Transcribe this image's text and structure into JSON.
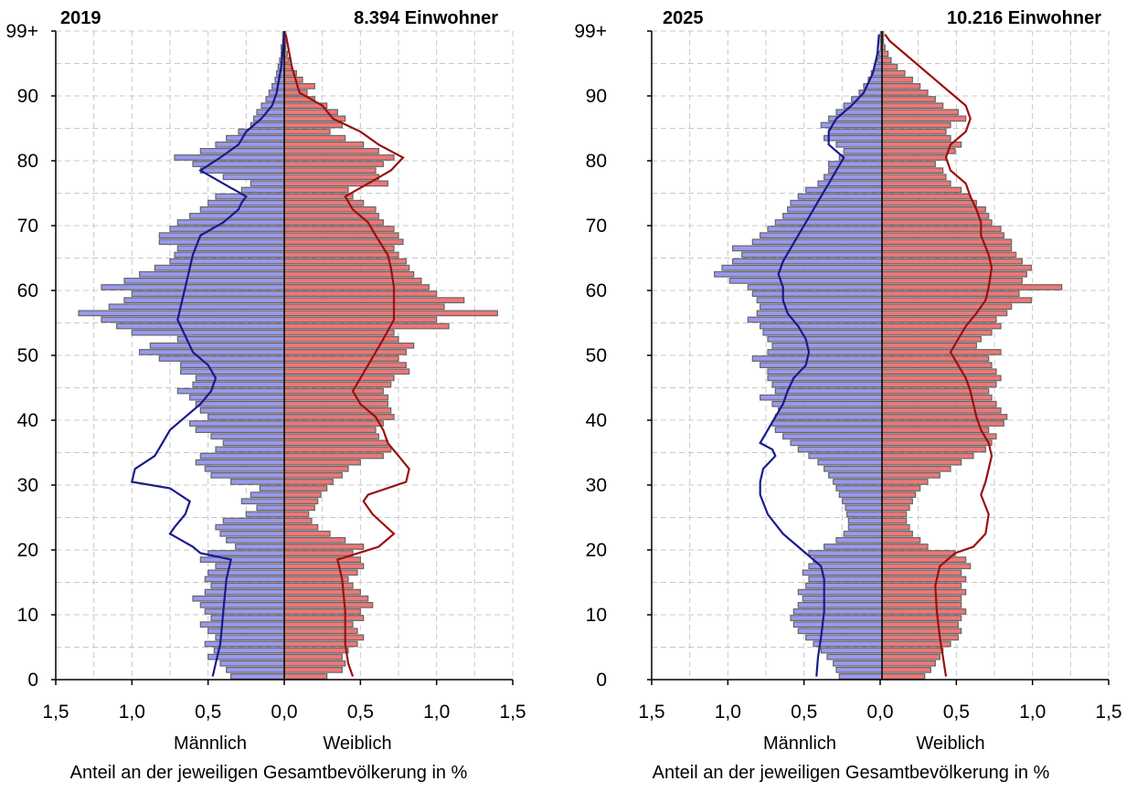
{
  "chart_data": [
    {
      "type": "bar",
      "orientation": "horizontal",
      "chart_subtype": "population-pyramid",
      "year": "2019",
      "population_label": "8.394 Einwohner",
      "xlabel": "Anteil an der jeweiligen Gesamtbevölkerung in %",
      "male_label": "Männlich",
      "female_label": "Weiblich",
      "xlim": [
        -1.5,
        1.5
      ],
      "ylim": [
        0,
        100
      ],
      "x_tick_labels": [
        "1,5",
        "1,0",
        "0,5",
        "0,0",
        "0,5",
        "1,0",
        "1,5"
      ],
      "y_tick_labels": [
        "0",
        "10",
        "20",
        "30",
        "40",
        "50",
        "60",
        "70",
        "80",
        "90",
        "99+"
      ],
      "grid": true,
      "colors": {
        "male_bar": "#9999ee",
        "female_bar": "#ee7777",
        "male_line": "#1a1a8c",
        "female_line": "#991111",
        "bar_edge": "#666666"
      },
      "male_values": [
        0.35,
        0.38,
        0.42,
        0.5,
        0.46,
        0.52,
        0.45,
        0.5,
        0.55,
        0.48,
        0.52,
        0.55,
        0.6,
        0.52,
        0.48,
        0.52,
        0.5,
        0.45,
        0.55,
        0.5,
        0.32,
        0.38,
        0.42,
        0.45,
        0.4,
        0.25,
        0.18,
        0.28,
        0.22,
        0.16,
        0.35,
        0.48,
        0.52,
        0.58,
        0.55,
        0.45,
        0.4,
        0.48,
        0.58,
        0.62,
        0.5,
        0.55,
        0.58,
        0.62,
        0.7,
        0.6,
        0.58,
        0.68,
        0.68,
        0.82,
        0.95,
        0.88,
        0.7,
        1.0,
        1.1,
        1.2,
        1.35,
        1.15,
        1.05,
        1.0,
        1.2,
        1.05,
        0.95,
        0.85,
        0.75,
        0.72,
        0.7,
        0.82,
        0.82,
        0.75,
        0.7,
        0.62,
        0.55,
        0.5,
        0.45,
        0.28,
        0.22,
        0.4,
        0.55,
        0.6,
        0.72,
        0.55,
        0.45,
        0.38,
        0.3,
        0.22,
        0.2,
        0.18,
        0.15,
        0.12,
        0.1,
        0.08,
        0.06,
        0.05,
        0.04,
        0.03,
        0.02,
        0.02,
        0.01,
        0.01
      ],
      "female_values": [
        0.28,
        0.38,
        0.4,
        0.38,
        0.42,
        0.48,
        0.52,
        0.48,
        0.45,
        0.52,
        0.5,
        0.58,
        0.55,
        0.5,
        0.45,
        0.42,
        0.48,
        0.52,
        0.5,
        0.45,
        0.52,
        0.4,
        0.3,
        0.22,
        0.18,
        0.16,
        0.2,
        0.22,
        0.24,
        0.28,
        0.32,
        0.38,
        0.42,
        0.5,
        0.65,
        0.7,
        0.68,
        0.62,
        0.6,
        0.65,
        0.72,
        0.7,
        0.68,
        0.68,
        0.65,
        0.7,
        0.72,
        0.82,
        0.8,
        0.75,
        0.8,
        0.85,
        0.75,
        0.72,
        1.08,
        1.0,
        1.4,
        1.05,
        1.18,
        1.0,
        0.95,
        0.9,
        0.85,
        0.82,
        0.8,
        0.75,
        0.72,
        0.78,
        0.75,
        0.72,
        0.65,
        0.62,
        0.6,
        0.52,
        0.45,
        0.42,
        0.68,
        0.62,
        0.6,
        0.65,
        0.72,
        0.62,
        0.52,
        0.4,
        0.3,
        0.38,
        0.4,
        0.35,
        0.28,
        0.2,
        0.15,
        0.2,
        0.12,
        0.08,
        0.05,
        0.03,
        0.02,
        0.01,
        0.01,
        0.01
      ],
      "male_line": [
        [
          0,
          0.47
        ],
        [
          2,
          0.45
        ],
        [
          5,
          0.42
        ],
        [
          10,
          0.4
        ],
        [
          15,
          0.38
        ],
        [
          18,
          0.35
        ],
        [
          19,
          0.55
        ],
        [
          20,
          0.6
        ],
        [
          22,
          0.75
        ],
        [
          23,
          0.72
        ],
        [
          25,
          0.65
        ],
        [
          27,
          0.62
        ],
        [
          29,
          0.75
        ],
        [
          30,
          1.0
        ],
        [
          32,
          0.98
        ],
        [
          34,
          0.85
        ],
        [
          36,
          0.8
        ],
        [
          38,
          0.75
        ],
        [
          40,
          0.65
        ],
        [
          42,
          0.55
        ],
        [
          44,
          0.48
        ],
        [
          46,
          0.45
        ],
        [
          48,
          0.5
        ],
        [
          50,
          0.6
        ],
        [
          55,
          0.7
        ],
        [
          60,
          0.65
        ],
        [
          65,
          0.6
        ],
        [
          68,
          0.55
        ],
        [
          70,
          0.4
        ],
        [
          72,
          0.3
        ],
        [
          73,
          0.28
        ],
        [
          74,
          0.25
        ],
        [
          76,
          0.4
        ],
        [
          78,
          0.55
        ],
        [
          80,
          0.42
        ],
        [
          82,
          0.3
        ],
        [
          84,
          0.25
        ],
        [
          86,
          0.15
        ],
        [
          88,
          0.08
        ],
        [
          90,
          0.05
        ],
        [
          94,
          0.02
        ],
        [
          99,
          0.0
        ]
      ],
      "female_line": [
        [
          0,
          0.45
        ],
        [
          2,
          0.42
        ],
        [
          5,
          0.4
        ],
        [
          10,
          0.4
        ],
        [
          15,
          0.38
        ],
        [
          18,
          0.35
        ],
        [
          20,
          0.62
        ],
        [
          22,
          0.72
        ],
        [
          25,
          0.58
        ],
        [
          27,
          0.52
        ],
        [
          28,
          0.55
        ],
        [
          30,
          0.8
        ],
        [
          32,
          0.82
        ],
        [
          34,
          0.75
        ],
        [
          36,
          0.68
        ],
        [
          38,
          0.65
        ],
        [
          40,
          0.6
        ],
        [
          42,
          0.5
        ],
        [
          44,
          0.45
        ],
        [
          46,
          0.5
        ],
        [
          48,
          0.55
        ],
        [
          50,
          0.6
        ],
        [
          52,
          0.65
        ],
        [
          55,
          0.72
        ],
        [
          60,
          0.72
        ],
        [
          63,
          0.7
        ],
        [
          65,
          0.68
        ],
        [
          68,
          0.6
        ],
        [
          70,
          0.55
        ],
        [
          72,
          0.45
        ],
        [
          74,
          0.4
        ],
        [
          76,
          0.55
        ],
        [
          78,
          0.7
        ],
        [
          80,
          0.78
        ],
        [
          82,
          0.62
        ],
        [
          84,
          0.5
        ],
        [
          86,
          0.32
        ],
        [
          88,
          0.25
        ],
        [
          90,
          0.1
        ],
        [
          94,
          0.05
        ],
        [
          99,
          0.01
        ]
      ]
    },
    {
      "type": "bar",
      "orientation": "horizontal",
      "chart_subtype": "population-pyramid",
      "year": "2025",
      "population_label": "10.216 Einwohner",
      "xlabel": "Anteil an der jeweiligen Gesamtbevölkerung in %",
      "male_label": "Männlich",
      "female_label": "Weiblich",
      "xlim": [
        -1.5,
        1.5
      ],
      "ylim": [
        0,
        100
      ],
      "x_tick_labels": [
        "1,5",
        "1,0",
        "0,5",
        "0,0",
        "0,5",
        "1,0",
        "1,5"
      ],
      "y_tick_labels": [
        "0",
        "10",
        "20",
        "30",
        "40",
        "50",
        "60",
        "70",
        "80",
        "90",
        "99+"
      ],
      "grid": true,
      "colors": {
        "male_bar": "#9999ee",
        "female_bar": "#ee7777",
        "male_line": "#1a1a8c",
        "female_line": "#991111",
        "bar_edge": "#666666"
      },
      "male_values": [
        0.28,
        0.3,
        0.32,
        0.36,
        0.4,
        0.45,
        0.5,
        0.55,
        0.58,
        0.6,
        0.58,
        0.55,
        0.52,
        0.55,
        0.5,
        0.48,
        0.52,
        0.48,
        0.45,
        0.48,
        0.38,
        0.3,
        0.25,
        0.22,
        0.22,
        0.23,
        0.24,
        0.26,
        0.28,
        0.3,
        0.32,
        0.35,
        0.38,
        0.42,
        0.48,
        0.55,
        0.6,
        0.65,
        0.7,
        0.72,
        0.7,
        0.68,
        0.72,
        0.8,
        0.7,
        0.72,
        0.75,
        0.75,
        0.8,
        0.85,
        0.75,
        0.72,
        0.75,
        0.78,
        0.8,
        0.88,
        0.82,
        0.8,
        0.82,
        0.85,
        0.88,
        1.0,
        1.1,
        1.05,
        0.98,
        0.92,
        0.98,
        0.85,
        0.8,
        0.75,
        0.7,
        0.65,
        0.62,
        0.6,
        0.55,
        0.5,
        0.42,
        0.38,
        0.35,
        0.35,
        0.28,
        0.25,
        0.3,
        0.38,
        0.35,
        0.4,
        0.35,
        0.3,
        0.25,
        0.2,
        0.15,
        0.12,
        0.09,
        0.07,
        0.05,
        0.03,
        0.02,
        0.01,
        0.01,
        0.01
      ],
      "female_values": [
        0.28,
        0.32,
        0.35,
        0.38,
        0.4,
        0.45,
        0.5,
        0.52,
        0.5,
        0.52,
        0.55,
        0.52,
        0.52,
        0.55,
        0.52,
        0.55,
        0.52,
        0.58,
        0.55,
        0.48,
        0.3,
        0.25,
        0.2,
        0.18,
        0.16,
        0.16,
        0.18,
        0.2,
        0.22,
        0.25,
        0.3,
        0.38,
        0.45,
        0.52,
        0.6,
        0.68,
        0.72,
        0.75,
        0.7,
        0.8,
        0.82,
        0.78,
        0.75,
        0.72,
        0.7,
        0.75,
        0.78,
        0.75,
        0.72,
        0.7,
        0.78,
        0.62,
        0.65,
        0.72,
        0.78,
        0.75,
        0.82,
        0.85,
        0.98,
        0.9,
        1.18,
        0.92,
        0.95,
        0.98,
        0.92,
        0.88,
        0.85,
        0.85,
        0.8,
        0.78,
        0.72,
        0.7,
        0.68,
        0.62,
        0.58,
        0.52,
        0.45,
        0.42,
        0.4,
        0.35,
        0.42,
        0.48,
        0.52,
        0.45,
        0.42,
        0.45,
        0.55,
        0.5,
        0.4,
        0.35,
        0.3,
        0.25,
        0.2,
        0.15,
        0.1,
        0.06,
        0.04,
        0.02,
        0.01,
        0.01
      ],
      "male_line": [
        [
          0,
          0.43
        ],
        [
          3,
          0.42
        ],
        [
          6,
          0.4
        ],
        [
          10,
          0.38
        ],
        [
          15,
          0.38
        ],
        [
          17,
          0.4
        ],
        [
          20,
          0.55
        ],
        [
          22,
          0.65
        ],
        [
          25,
          0.75
        ],
        [
          28,
          0.8
        ],
        [
          30,
          0.8
        ],
        [
          32,
          0.78
        ],
        [
          34,
          0.7
        ],
        [
          35,
          0.72
        ],
        [
          36,
          0.8
        ],
        [
          38,
          0.75
        ],
        [
          40,
          0.7
        ],
        [
          42,
          0.65
        ],
        [
          44,
          0.62
        ],
        [
          46,
          0.58
        ],
        [
          48,
          0.5
        ],
        [
          50,
          0.48
        ],
        [
          52,
          0.5
        ],
        [
          54,
          0.55
        ],
        [
          56,
          0.62
        ],
        [
          58,
          0.65
        ],
        [
          60,
          0.65
        ],
        [
          62,
          0.68
        ],
        [
          64,
          0.65
        ],
        [
          66,
          0.6
        ],
        [
          68,
          0.55
        ],
        [
          70,
          0.5
        ],
        [
          72,
          0.45
        ],
        [
          74,
          0.4
        ],
        [
          76,
          0.35
        ],
        [
          78,
          0.3
        ],
        [
          80,
          0.25
        ],
        [
          82,
          0.35
        ],
        [
          84,
          0.35
        ],
        [
          86,
          0.3
        ],
        [
          88,
          0.2
        ],
        [
          90,
          0.12
        ],
        [
          93,
          0.06
        ],
        [
          96,
          0.03
        ],
        [
          99,
          0.02
        ]
      ],
      "female_line": [
        [
          0,
          0.42
        ],
        [
          3,
          0.4
        ],
        [
          6,
          0.38
        ],
        [
          10,
          0.36
        ],
        [
          14,
          0.35
        ],
        [
          17,
          0.38
        ],
        [
          19,
          0.48
        ],
        [
          20,
          0.6
        ],
        [
          22,
          0.68
        ],
        [
          25,
          0.7
        ],
        [
          28,
          0.65
        ],
        [
          30,
          0.68
        ],
        [
          32,
          0.7
        ],
        [
          34,
          0.72
        ],
        [
          36,
          0.7
        ],
        [
          38,
          0.65
        ],
        [
          40,
          0.62
        ],
        [
          42,
          0.6
        ],
        [
          44,
          0.58
        ],
        [
          46,
          0.55
        ],
        [
          48,
          0.5
        ],
        [
          50,
          0.45
        ],
        [
          52,
          0.5
        ],
        [
          54,
          0.55
        ],
        [
          56,
          0.62
        ],
        [
          58,
          0.68
        ],
        [
          60,
          0.7
        ],
        [
          63,
          0.72
        ],
        [
          65,
          0.7
        ],
        [
          68,
          0.65
        ],
        [
          70,
          0.65
        ],
        [
          72,
          0.62
        ],
        [
          74,
          0.58
        ],
        [
          76,
          0.55
        ],
        [
          78,
          0.45
        ],
        [
          80,
          0.42
        ],
        [
          82,
          0.45
        ],
        [
          84,
          0.55
        ],
        [
          86,
          0.58
        ],
        [
          88,
          0.55
        ],
        [
          90,
          0.45
        ],
        [
          92,
          0.35
        ],
        [
          95,
          0.2
        ],
        [
          98,
          0.05
        ],
        [
          99,
          0.02
        ]
      ]
    }
  ]
}
